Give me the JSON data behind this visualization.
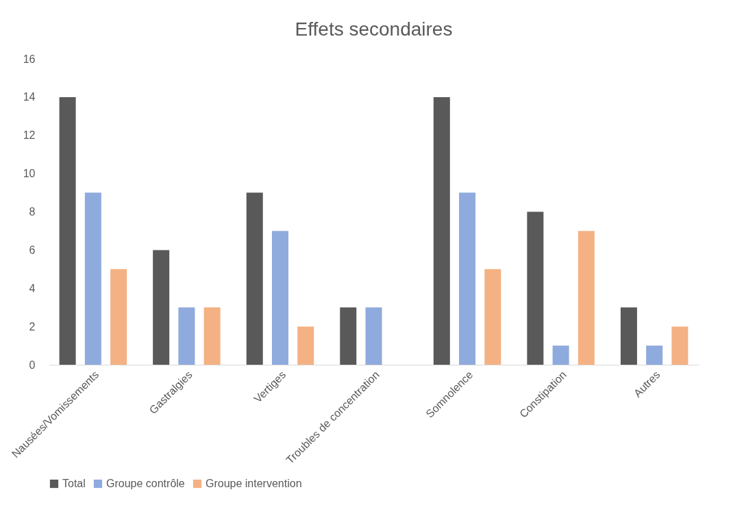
{
  "chart_data": {
    "type": "bar",
    "title": "Effets secondaires",
    "categories": [
      "Nausées/Vomissements",
      "Gastralgies",
      "Vertiges",
      "Troubles de concentration",
      "Somnolence",
      "Constipation",
      "Autres"
    ],
    "series": [
      {
        "name": "Total",
        "color": "#595959",
        "values": [
          14,
          6,
          9,
          3,
          14,
          8,
          3
        ]
      },
      {
        "name": "Groupe contrôle",
        "color": "#8faadc",
        "values": [
          9,
          3,
          7,
          3,
          9,
          1,
          1
        ]
      },
      {
        "name": "Groupe intervention",
        "color": "#f4b183",
        "values": [
          5,
          3,
          2,
          0,
          5,
          7,
          2
        ]
      }
    ],
    "ylim": [
      0,
      16
    ],
    "yticks": [
      0,
      2,
      4,
      6,
      8,
      10,
      12,
      14,
      16
    ],
    "grid": false,
    "legend": "bottom"
  }
}
